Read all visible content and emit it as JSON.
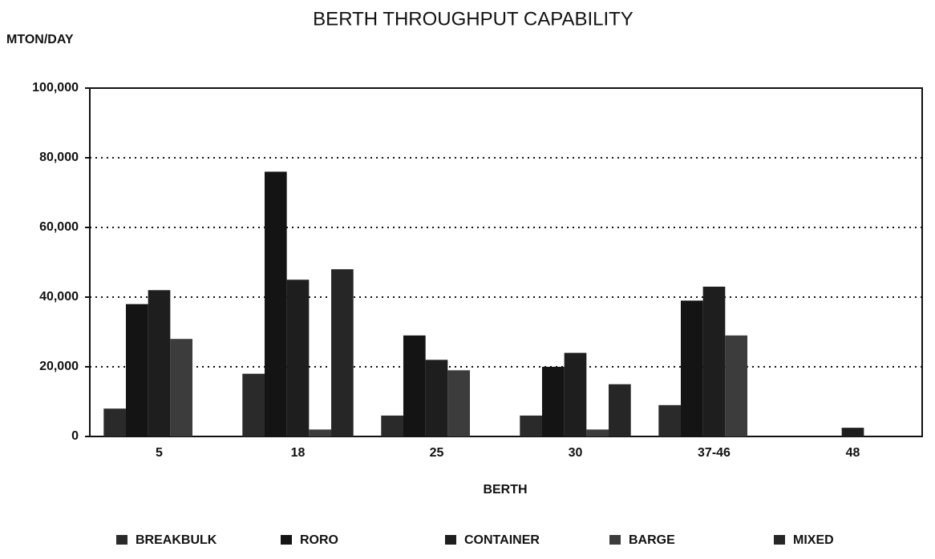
{
  "chart_data": {
    "type": "bar",
    "title": "BERTH THROUGHPUT CAPABILITY",
    "y_label": "MTON/DAY",
    "x_label": "BERTH",
    "categories": [
      "5",
      "18",
      "25",
      "30",
      "37-46",
      "48"
    ],
    "series": [
      {
        "name": "BREAKBULK",
        "color": "#2a2a2a",
        "values": [
          8000,
          18000,
          6000,
          6000,
          9000,
          0
        ]
      },
      {
        "name": "RORO",
        "color": "#141414",
        "values": [
          38000,
          76000,
          29000,
          20000,
          39000,
          0
        ]
      },
      {
        "name": "CONTAINER",
        "color": "#1e1e1e",
        "values": [
          42000,
          45000,
          22000,
          24000,
          43000,
          2500
        ]
      },
      {
        "name": "BARGE",
        "color": "#3c3c3c",
        "values": [
          28000,
          2000,
          19000,
          2000,
          29000,
          0
        ]
      },
      {
        "name": "MIXED",
        "color": "#262626",
        "values": [
          0,
          48000,
          0,
          15000,
          0,
          0
        ]
      }
    ],
    "ylim": [
      0,
      100000
    ],
    "yticks": [
      0,
      {
        "value": 20000,
        "label": "20,000"
      },
      {
        "value": 40000,
        "label": "40,000"
      },
      {
        "value": 60000,
        "label": "60,000"
      },
      {
        "value": 80000,
        "label": "80,000"
      },
      {
        "value": 100000,
        "label": "100,000"
      }
    ],
    "grid": true
  }
}
